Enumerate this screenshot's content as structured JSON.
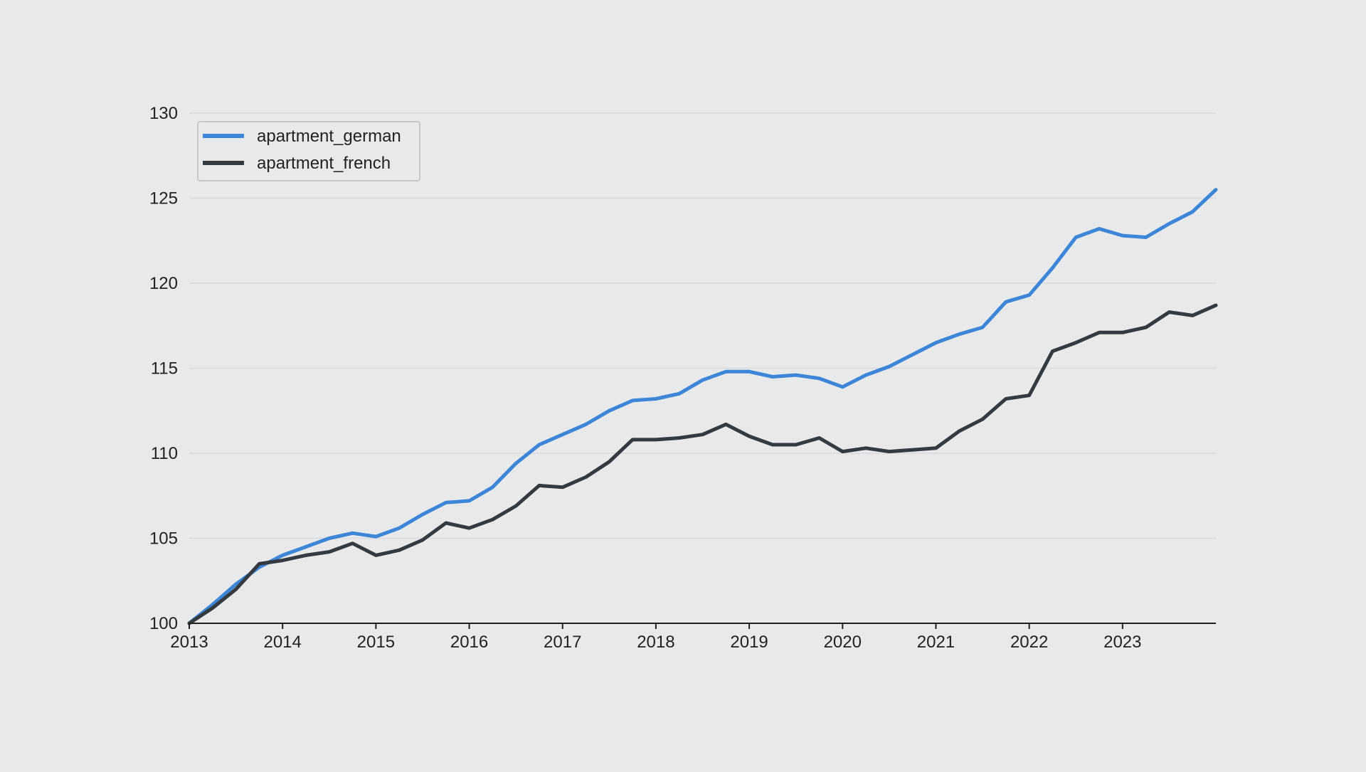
{
  "chart_data": {
    "type": "line",
    "title": "",
    "xlabel": "",
    "ylabel": "",
    "xlim": [
      2013.0,
      2024.0
    ],
    "ylim": [
      100,
      130
    ],
    "grid": "horizontal",
    "legend_position": "top-left",
    "x_ticks": [
      "2013",
      "2014",
      "2015",
      "2016",
      "2017",
      "2018",
      "2019",
      "2020",
      "2021",
      "2022",
      "2023"
    ],
    "y_ticks": [
      "100",
      "105",
      "110",
      "115",
      "120",
      "125",
      "130"
    ],
    "x": [
      2013.0,
      2013.25,
      2013.5,
      2013.75,
      2014.0,
      2014.25,
      2014.5,
      2014.75,
      2015.0,
      2015.25,
      2015.5,
      2015.75,
      2016.0,
      2016.25,
      2016.5,
      2016.75,
      2017.0,
      2017.25,
      2017.5,
      2017.75,
      2018.0,
      2018.25,
      2018.5,
      2018.75,
      2019.0,
      2019.25,
      2019.5,
      2019.75,
      2020.0,
      2020.25,
      2020.5,
      2020.75,
      2021.0,
      2021.25,
      2021.5,
      2021.75,
      2022.0,
      2022.25,
      2022.5,
      2022.75,
      2023.0,
      2023.25,
      2023.5,
      2023.75,
      2024.0
    ],
    "series": [
      {
        "name": "apartment_german",
        "color": "#3d85d6",
        "values": [
          100.0,
          101.1,
          102.3,
          103.3,
          104.0,
          104.5,
          105.0,
          105.3,
          105.1,
          105.6,
          106.4,
          107.1,
          107.2,
          108.0,
          109.4,
          110.5,
          111.1,
          111.7,
          112.5,
          113.1,
          113.2,
          113.5,
          114.3,
          114.8,
          114.8,
          114.5,
          114.6,
          114.4,
          113.9,
          114.6,
          115.1,
          115.8,
          116.5,
          117.0,
          117.4,
          118.9,
          119.3,
          120.9,
          122.7,
          123.2,
          122.8,
          122.7,
          123.5,
          124.2,
          125.5
        ]
      },
      {
        "name": "apartment_french",
        "color": "#353a40",
        "values": [
          100.0,
          100.9,
          102.0,
          103.5,
          103.7,
          104.0,
          104.2,
          104.7,
          104.0,
          104.3,
          104.9,
          105.9,
          105.6,
          106.1,
          106.9,
          108.1,
          108.0,
          108.6,
          109.5,
          110.8,
          110.8,
          110.9,
          111.1,
          111.7,
          111.0,
          110.5,
          110.5,
          110.9,
          110.1,
          110.3,
          110.1,
          110.2,
          110.3,
          111.3,
          112.0,
          113.2,
          113.4,
          116.0,
          116.5,
          117.1,
          117.1,
          117.4,
          118.3,
          118.1,
          118.7
        ]
      }
    ]
  }
}
